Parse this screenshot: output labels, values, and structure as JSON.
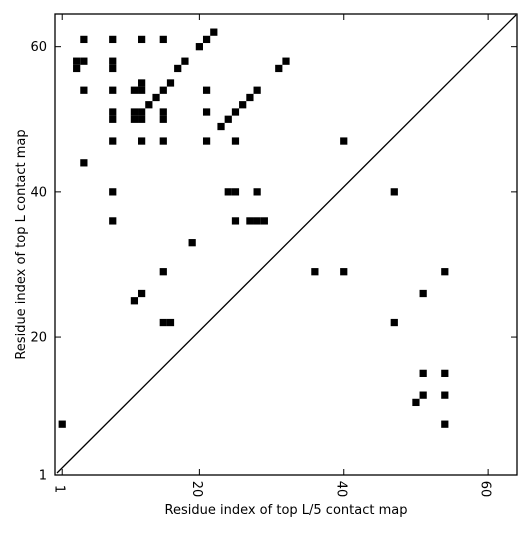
{
  "chart_data": {
    "type": "heatmap",
    "xlabel": "Residue index of top L/5 contact map",
    "ylabel": "Residue index of top L contact map",
    "xlim": [
      0,
      64
    ],
    "ylim": [
      1,
      64.5
    ],
    "xticks": [
      {
        "value": 1,
        "label": "1"
      },
      {
        "value": 20,
        "label": "20"
      },
      {
        "value": 40,
        "label": "40"
      },
      {
        "value": 60,
        "label": "60"
      }
    ],
    "yticks": [
      {
        "value": 1,
        "label": "1"
      },
      {
        "value": 20,
        "label": "20"
      },
      {
        "value": 40,
        "label": "40"
      },
      {
        "value": 60,
        "label": "60"
      }
    ],
    "diagonal": true,
    "cell_color": "#000000",
    "upper_triangle_cells": [
      [
        4,
        61
      ],
      [
        8,
        61
      ],
      [
        12,
        61
      ],
      [
        15,
        61
      ],
      [
        20,
        60
      ],
      [
        21,
        61
      ],
      [
        22,
        62
      ],
      [
        3,
        58
      ],
      [
        3,
        57
      ],
      [
        4,
        58
      ],
      [
        8,
        58
      ],
      [
        8,
        57
      ],
      [
        18,
        58
      ],
      [
        17,
        57
      ],
      [
        31,
        57
      ],
      [
        32,
        58
      ],
      [
        4,
        54
      ],
      [
        8,
        54
      ],
      [
        11,
        54
      ],
      [
        12,
        55
      ],
      [
        12,
        54
      ],
      [
        15,
        54
      ],
      [
        16,
        55
      ],
      [
        21,
        54
      ],
      [
        28,
        54
      ],
      [
        13,
        52
      ],
      [
        14,
        53
      ],
      [
        26,
        52
      ],
      [
        27,
        53
      ],
      [
        8,
        51
      ],
      [
        8,
        50
      ],
      [
        11,
        51
      ],
      [
        11,
        50
      ],
      [
        12,
        51
      ],
      [
        12,
        50
      ],
      [
        15,
        51
      ],
      [
        15,
        50
      ],
      [
        21,
        51
      ],
      [
        24,
        50
      ],
      [
        25,
        51
      ],
      [
        23,
        49
      ],
      [
        8,
        47
      ],
      [
        12,
        47
      ],
      [
        15,
        47
      ],
      [
        21,
        47
      ],
      [
        25,
        47
      ],
      [
        40,
        47
      ],
      [
        4,
        44
      ],
      [
        8,
        40
      ],
      [
        24,
        40
      ],
      [
        25,
        40
      ],
      [
        28,
        40
      ],
      [
        47,
        40
      ],
      [
        8,
        36
      ],
      [
        25,
        36
      ],
      [
        27,
        36
      ],
      [
        28,
        36
      ],
      [
        29,
        36
      ],
      [
        19,
        33
      ]
    ],
    "lower_triangle_cells": [
      [
        15,
        29
      ],
      [
        36,
        29
      ],
      [
        40,
        29
      ],
      [
        54,
        29
      ],
      [
        12,
        26
      ],
      [
        51,
        26
      ],
      [
        11,
        25
      ],
      [
        15,
        22
      ],
      [
        16,
        22
      ],
      [
        47,
        22
      ],
      [
        51,
        15
      ],
      [
        54,
        15
      ],
      [
        51,
        12
      ],
      [
        54,
        12
      ],
      [
        50,
        11
      ],
      [
        54,
        8
      ],
      [
        1,
        8
      ]
    ]
  }
}
